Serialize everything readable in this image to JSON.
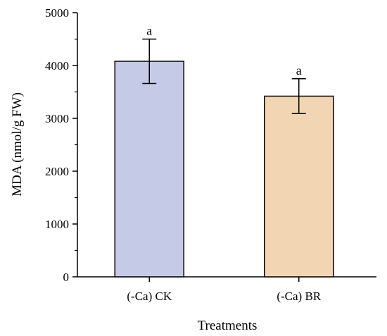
{
  "chart_data": {
    "type": "bar",
    "categories": [
      "(-Ca) CK",
      "(-Ca) BR"
    ],
    "values": [
      4080,
      3420
    ],
    "errors": [
      420,
      330
    ],
    "significance": [
      "a",
      "a"
    ],
    "colors": [
      "#c5cbe6",
      "#f2d6b4"
    ],
    "xlabel": "Treatments",
    "ylabel": "MDA (nmol/g FW)",
    "ylim": [
      0,
      5000
    ],
    "yticks": [
      0,
      1000,
      2000,
      3000,
      4000,
      5000
    ],
    "grid": false,
    "legend": "none"
  }
}
